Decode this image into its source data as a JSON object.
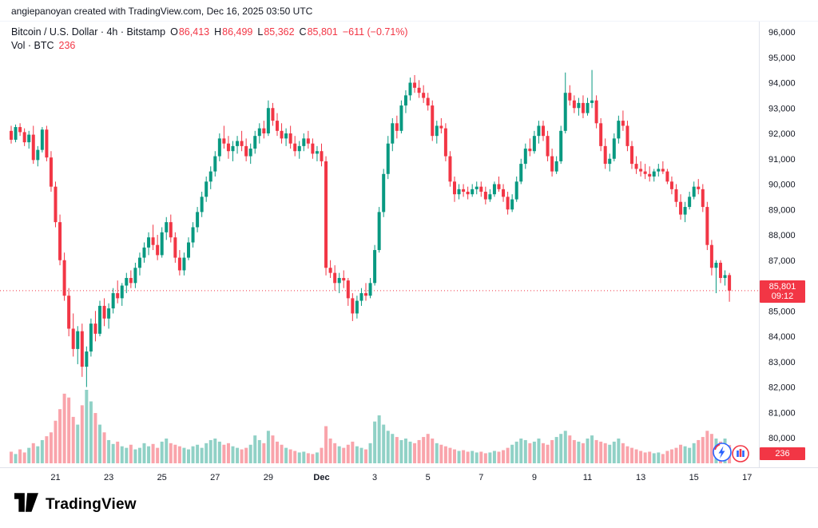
{
  "attribution": "angiepanoyan created with TradingView.com, Dec 16, 2025 03:50 UTC",
  "legend": {
    "title": "Bitcoin / U.S. Dollar · 4h · Bitstamp",
    "o_label": "O",
    "o": "86,413",
    "h_label": "H",
    "h": "86,499",
    "l_label": "L",
    "l": "85,362",
    "c_label": "C",
    "c": "85,801",
    "change": "−611 (−0.71%)",
    "vol_title": "Vol · BTC",
    "vol_value": "236"
  },
  "price_label": {
    "price": "85,801",
    "countdown": "09:12"
  },
  "volume_label": "236",
  "logo_text": "TradingView",
  "colors": {
    "up": "#089981",
    "down": "#f23645",
    "vol_up": "rgba(8,153,129,0.45)",
    "vol_down": "rgba(242,54,69,0.45)",
    "axis_text": "#131722",
    "separator": "#e0e3eb",
    "accent_blue": "#2962ff"
  },
  "chart_data": {
    "type": "candlestick",
    "title": "Bitcoin / U.S. Dollar",
    "interval": "4h",
    "exchange": "Bitstamp",
    "current_price": 85801,
    "current_volume": 236,
    "y_axis": {
      "min": 80000,
      "max": 96000,
      "tick_step": 1000
    },
    "x_ticks": [
      {
        "label": "21",
        "index": 10
      },
      {
        "label": "23",
        "index": 22
      },
      {
        "label": "25",
        "index": 34
      },
      {
        "label": "27",
        "index": 46
      },
      {
        "label": "29",
        "index": 58
      },
      {
        "label": "Dec",
        "index": 70,
        "bold": true
      },
      {
        "label": "3",
        "index": 82
      },
      {
        "label": "5",
        "index": 94
      },
      {
        "label": "7",
        "index": 106
      },
      {
        "label": "9",
        "index": 118
      },
      {
        "label": "11",
        "index": 130
      },
      {
        "label": "13",
        "index": 142
      },
      {
        "label": "15",
        "index": 154
      },
      {
        "label": "17",
        "index": 166
      }
    ],
    "candles": [
      [
        92100,
        92300,
        91600,
        91750,
        150
      ],
      [
        91750,
        92350,
        91650,
        92250,
        120
      ],
      [
        92250,
        92400,
        91900,
        92050,
        180
      ],
      [
        92050,
        92200,
        91500,
        91650,
        140
      ],
      [
        91650,
        92100,
        91400,
        91950,
        200
      ],
      [
        91950,
        92300,
        90800,
        90950,
        260
      ],
      [
        90950,
        91500,
        90700,
        91350,
        220
      ],
      [
        91350,
        92250,
        91250,
        92150,
        300
      ],
      [
        92150,
        92300,
        90900,
        91050,
        350
      ],
      [
        91050,
        91300,
        89700,
        89900,
        400
      ],
      [
        89900,
        90100,
        88300,
        88500,
        550
      ],
      [
        88500,
        88800,
        86800,
        87000,
        700
      ],
      [
        87000,
        87300,
        85400,
        85600,
        900
      ],
      [
        85600,
        85900,
        84000,
        84300,
        850
      ],
      [
        84300,
        84900,
        83200,
        83500,
        600
      ],
      [
        83500,
        84400,
        82900,
        84200,
        500
      ],
      [
        84200,
        84500,
        82400,
        82800,
        750
      ],
      [
        82800,
        83600,
        82000,
        83400,
        950
      ],
      [
        83400,
        84700,
        83200,
        84500,
        800
      ],
      [
        84500,
        85000,
        83800,
        84100,
        650
      ],
      [
        84100,
        85400,
        84000,
        85200,
        500
      ],
      [
        85200,
        85500,
        84400,
        84700,
        400
      ],
      [
        84700,
        85300,
        84300,
        85100,
        300
      ],
      [
        85100,
        85900,
        84900,
        85700,
        250
      ],
      [
        85700,
        86200,
        85300,
        85500,
        280
      ],
      [
        85500,
        86100,
        85200,
        86000,
        220
      ],
      [
        86000,
        86500,
        85700,
        86300,
        200
      ],
      [
        86300,
        86600,
        85900,
        86100,
        240
      ],
      [
        86100,
        86900,
        85900,
        86700,
        180
      ],
      [
        86700,
        87300,
        86400,
        87100,
        200
      ],
      [
        87100,
        87700,
        86900,
        87500,
        260
      ],
      [
        87500,
        88100,
        87200,
        87900,
        220
      ],
      [
        87900,
        88400,
        87400,
        87600,
        250
      ],
      [
        87600,
        88000,
        87000,
        87200,
        200
      ],
      [
        87200,
        88300,
        87100,
        88100,
        280
      ],
      [
        88100,
        88700,
        87800,
        88500,
        320
      ],
      [
        88500,
        88800,
        87700,
        87900,
        260
      ],
      [
        87900,
        88100,
        86900,
        87100,
        240
      ],
      [
        87100,
        87400,
        86400,
        86600,
        220
      ],
      [
        86600,
        87300,
        86400,
        87100,
        200
      ],
      [
        87100,
        87900,
        87000,
        87700,
        180
      ],
      [
        87700,
        88500,
        87500,
        88300,
        220
      ],
      [
        88300,
        89100,
        88100,
        88900,
        240
      ],
      [
        88900,
        89700,
        88700,
        89500,
        200
      ],
      [
        89500,
        90300,
        89300,
        90100,
        260
      ],
      [
        90100,
        90700,
        89800,
        90500,
        300
      ],
      [
        90500,
        91300,
        90300,
        91100,
        320
      ],
      [
        91100,
        92000,
        90900,
        91800,
        280
      ],
      [
        91800,
        92300,
        91400,
        91600,
        240
      ],
      [
        91600,
        91900,
        91000,
        91300,
        260
      ],
      [
        91300,
        91700,
        90900,
        91500,
        220
      ],
      [
        91500,
        91900,
        91200,
        91700,
        200
      ],
      [
        91700,
        92100,
        91300,
        91500,
        180
      ],
      [
        91500,
        91800,
        90900,
        91100,
        200
      ],
      [
        91100,
        91600,
        90800,
        91400,
        240
      ],
      [
        91400,
        92100,
        91200,
        91900,
        360
      ],
      [
        91900,
        92400,
        91600,
        92200,
        300
      ],
      [
        92200,
        92500,
        91800,
        92000,
        260
      ],
      [
        92000,
        93300,
        91900,
        93000,
        420
      ],
      [
        93000,
        93200,
        92300,
        92500,
        360
      ],
      [
        92500,
        92800,
        91900,
        92100,
        280
      ],
      [
        92100,
        92400,
        91600,
        91800,
        240
      ],
      [
        91800,
        92200,
        91500,
        92000,
        200
      ],
      [
        92000,
        92300,
        91400,
        91600,
        180
      ],
      [
        91600,
        91900,
        91100,
        91300,
        160
      ],
      [
        91300,
        91700,
        91000,
        91500,
        140
      ],
      [
        91500,
        92000,
        91300,
        91800,
        150
      ],
      [
        91800,
        92100,
        91400,
        91600,
        130
      ],
      [
        91600,
        91800,
        91000,
        91200,
        120
      ],
      [
        91200,
        91500,
        90900,
        91300,
        140
      ],
      [
        91300,
        91600,
        90700,
        90900,
        200
      ],
      [
        90900,
        91100,
        86400,
        86700,
        480
      ],
      [
        86700,
        87000,
        86300,
        86500,
        320
      ],
      [
        86500,
        86800,
        85800,
        86100,
        260
      ],
      [
        86100,
        86500,
        85700,
        86300,
        220
      ],
      [
        86300,
        86600,
        85900,
        86200,
        200
      ],
      [
        86200,
        86300,
        85200,
        85500,
        240
      ],
      [
        85500,
        85700,
        84600,
        84900,
        280
      ],
      [
        84900,
        85600,
        84700,
        85400,
        220
      ],
      [
        85400,
        85900,
        85200,
        85700,
        200
      ],
      [
        85700,
        86100,
        85400,
        85600,
        180
      ],
      [
        85600,
        86300,
        85500,
        86100,
        260
      ],
      [
        86100,
        87600,
        86000,
        87400,
        540
      ],
      [
        87400,
        89100,
        87300,
        88900,
        620
      ],
      [
        88900,
        90600,
        88700,
        90400,
        500
      ],
      [
        90400,
        91900,
        90200,
        91600,
        420
      ],
      [
        91600,
        92600,
        91300,
        92400,
        380
      ],
      [
        92400,
        92700,
        91800,
        92100,
        340
      ],
      [
        92100,
        93300,
        92000,
        93100,
        300
      ],
      [
        93100,
        93700,
        92800,
        93500,
        320
      ],
      [
        93500,
        94200,
        93300,
        94000,
        280
      ],
      [
        94000,
        94300,
        93600,
        93800,
        260
      ],
      [
        93800,
        94100,
        93400,
        93600,
        300
      ],
      [
        93600,
        93900,
        93200,
        93400,
        340
      ],
      [
        93400,
        93600,
        92900,
        93100,
        380
      ],
      [
        93100,
        93300,
        91700,
        91900,
        320
      ],
      [
        91900,
        92500,
        91600,
        92300,
        260
      ],
      [
        92300,
        92600,
        92000,
        92200,
        240
      ],
      [
        92200,
        92400,
        90900,
        91100,
        220
      ],
      [
        91100,
        91300,
        89900,
        90100,
        200
      ],
      [
        90100,
        90300,
        89300,
        89600,
        180
      ],
      [
        89600,
        90000,
        89400,
        89800,
        160
      ],
      [
        89800,
        90000,
        89500,
        89700,
        170
      ],
      [
        89700,
        89900,
        89400,
        89600,
        150
      ],
      [
        89600,
        90000,
        89500,
        89800,
        160
      ],
      [
        89800,
        90100,
        89600,
        89900,
        140
      ],
      [
        89900,
        90100,
        89500,
        89700,
        150
      ],
      [
        89700,
        89900,
        89200,
        89400,
        130
      ],
      [
        89400,
        89800,
        89300,
        89600,
        140
      ],
      [
        89600,
        90100,
        89500,
        90000,
        160
      ],
      [
        90000,
        90300,
        89700,
        89800,
        150
      ],
      [
        89800,
        90000,
        89300,
        89500,
        170
      ],
      [
        89500,
        89700,
        88800,
        89000,
        200
      ],
      [
        89000,
        89600,
        88900,
        89400,
        240
      ],
      [
        89400,
        90300,
        89300,
        90100,
        280
      ],
      [
        90100,
        91000,
        90000,
        90800,
        320
      ],
      [
        90800,
        91600,
        90600,
        91400,
        300
      ],
      [
        91400,
        91800,
        91100,
        91300,
        260
      ],
      [
        91300,
        92100,
        91200,
        91900,
        280
      ],
      [
        91900,
        92500,
        91600,
        92300,
        320
      ],
      [
        92300,
        92500,
        91700,
        91900,
        260
      ],
      [
        91900,
        92100,
        90900,
        91100,
        240
      ],
      [
        91100,
        91400,
        90300,
        90500,
        300
      ],
      [
        90500,
        91100,
        90400,
        90900,
        340
      ],
      [
        90900,
        92300,
        90800,
        92100,
        380
      ],
      [
        92100,
        94400,
        92000,
        93600,
        420
      ],
      [
        93600,
        93900,
        93100,
        93300,
        360
      ],
      [
        93300,
        93500,
        92800,
        93000,
        300
      ],
      [
        93000,
        93400,
        92700,
        93200,
        280
      ],
      [
        93200,
        93500,
        92600,
        92800,
        260
      ],
      [
        92800,
        93400,
        92700,
        93200,
        320
      ],
      [
        93200,
        94500,
        93000,
        93300,
        360
      ],
      [
        93300,
        93500,
        92200,
        92400,
        300
      ],
      [
        92400,
        92600,
        91300,
        91500,
        280
      ],
      [
        91500,
        91800,
        90600,
        90800,
        260
      ],
      [
        90800,
        91200,
        90500,
        91000,
        240
      ],
      [
        91000,
        92000,
        90900,
        91800,
        280
      ],
      [
        91800,
        92700,
        91600,
        92500,
        320
      ],
      [
        92500,
        92900,
        92100,
        92300,
        260
      ],
      [
        92300,
        92500,
        91300,
        91500,
        220
      ],
      [
        91500,
        91700,
        90600,
        90800,
        200
      ],
      [
        90800,
        91100,
        90400,
        90600,
        180
      ],
      [
        90600,
        90900,
        90300,
        90500,
        160
      ],
      [
        90500,
        90800,
        90200,
        90400,
        140
      ],
      [
        90400,
        90700,
        90100,
        90300,
        150
      ],
      [
        90300,
        90600,
        90100,
        90500,
        130
      ],
      [
        90500,
        90800,
        90300,
        90600,
        140
      ],
      [
        90600,
        90900,
        90400,
        90500,
        120
      ],
      [
        90500,
        90600,
        90000,
        90100,
        160
      ],
      [
        90100,
        90300,
        89600,
        89800,
        180
      ],
      [
        89800,
        90000,
        89100,
        89300,
        200
      ],
      [
        89300,
        89600,
        88600,
        88800,
        240
      ],
      [
        88800,
        89300,
        88500,
        89100,
        220
      ],
      [
        89100,
        89700,
        89000,
        89500,
        200
      ],
      [
        89500,
        90100,
        89400,
        89900,
        260
      ],
      [
        89900,
        90200,
        89600,
        89800,
        300
      ],
      [
        89800,
        90000,
        88900,
        89100,
        340
      ],
      [
        89100,
        89300,
        87400,
        87600,
        420
      ],
      [
        87600,
        87800,
        86400,
        86700,
        380
      ],
      [
        86700,
        87000,
        85700,
        86900,
        320
      ],
      [
        86900,
        87000,
        86100,
        86300,
        280
      ],
      [
        86300,
        86600,
        86000,
        86412,
        320
      ],
      [
        86413,
        86499,
        85362,
        85801,
        236
      ]
    ]
  }
}
